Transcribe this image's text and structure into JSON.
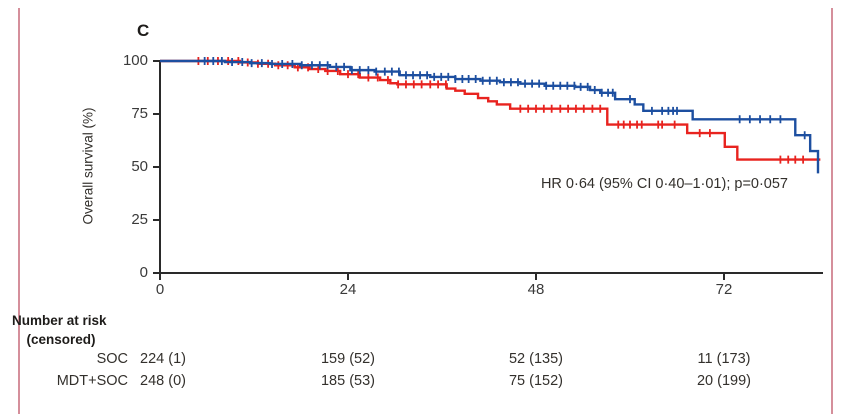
{
  "panel_label": "C",
  "annotation": "HR 0·64 (95% CI 0·40–1·01); p=0·057",
  "axes": {
    "ylabel": "Overall survival (%)",
    "xlabel": ""
  },
  "colors": {
    "soc_red": "#e8231f",
    "mdt_blue": "#1d4fa0",
    "axis": "#2a2a2a",
    "figure_border_pink": "#d58f9b"
  },
  "risk_table": {
    "header_line1": "Number at risk",
    "header_line2": "(censored)",
    "rows": [
      {
        "label": "SOC",
        "values": [
          "224 (1)",
          "159 (52)",
          "52 (135)",
          "11 (173)"
        ]
      },
      {
        "label": "MDT+SOC",
        "values": [
          "248 (0)",
          "185 (53)",
          "75 (152)",
          "20 (199)"
        ]
      }
    ]
  },
  "chart_data": {
    "type": "line",
    "subtype": "kaplan-meier-step",
    "title": "C",
    "ylabel": "Overall survival (%)",
    "xlabel": "",
    "xticks": [
      0,
      24,
      48,
      72
    ],
    "yticks": [
      0,
      25,
      50,
      75,
      100
    ],
    "xlim": [
      0,
      84.6
    ],
    "ylim": [
      0,
      100
    ],
    "grid": false,
    "legend_position": "none",
    "annotation": "HR 0·64 (95% CI 0·40–1·01); p=0·057",
    "series": [
      {
        "name": "SOC",
        "color": "#e8231f",
        "steps": [
          [
            0,
            100
          ],
          [
            10.2,
            99.3
          ],
          [
            12.5,
            98.7
          ],
          [
            14.7,
            98
          ],
          [
            17.2,
            97
          ],
          [
            19.1,
            96.2
          ],
          [
            21.1,
            95.3
          ],
          [
            23,
            93.8
          ],
          [
            25.5,
            92.2
          ],
          [
            28.1,
            91
          ],
          [
            29.4,
            89.5
          ],
          [
            30.3,
            89
          ],
          [
            36.6,
            87
          ],
          [
            37.7,
            86
          ],
          [
            38.9,
            84.5
          ],
          [
            40.6,
            82.5
          ],
          [
            41.9,
            81
          ],
          [
            43,
            79.5
          ],
          [
            44.7,
            77.5
          ],
          [
            57.1,
            70
          ],
          [
            67.3,
            66
          ],
          [
            72.1,
            59.5
          ],
          [
            73.7,
            53.5
          ],
          [
            84.3,
            53.5
          ]
        ],
        "censors": [
          4.9,
          6.1,
          7.4,
          8.7,
          10.0,
          11.2,
          12.5,
          13.8,
          15.1,
          16.3,
          17.6,
          18.9,
          20.2,
          21.4,
          22.7,
          24.0,
          25.3,
          26.6,
          27.8,
          29.1,
          30.4,
          31.4,
          32.4,
          33.4,
          34.5,
          35.5,
          36.5,
          46.0,
          47.0,
          48.0,
          49.0,
          50.0,
          51.1,
          52.1,
          53.1,
          54.1,
          55.2,
          56.2,
          58.5,
          59.2,
          60.0,
          60.9,
          61.5,
          63.6,
          64.1,
          65.7,
          68.9,
          70.2,
          79.2,
          80.2,
          81.1,
          82.1
        ]
      },
      {
        "name": "MDT+SOC",
        "color": "#1d4fa0",
        "steps": [
          [
            0,
            100
          ],
          [
            8.3,
            99.5
          ],
          [
            11.5,
            99
          ],
          [
            14,
            98.6
          ],
          [
            17.9,
            98
          ],
          [
            21.7,
            97.2
          ],
          [
            24.3,
            95.7
          ],
          [
            27.4,
            95
          ],
          [
            30.6,
            93.3
          ],
          [
            34.5,
            92.5
          ],
          [
            37.7,
            91.5
          ],
          [
            40.9,
            90.7
          ],
          [
            43.4,
            90
          ],
          [
            46,
            89.3
          ],
          [
            49.1,
            88.3
          ],
          [
            53,
            87.8
          ],
          [
            54.9,
            86.3
          ],
          [
            56.2,
            85
          ],
          [
            58.1,
            82
          ],
          [
            60.6,
            79.5
          ],
          [
            61.7,
            76.5
          ],
          [
            68,
            72.5
          ],
          [
            81.1,
            65
          ],
          [
            83,
            57.5
          ],
          [
            84,
            47
          ]
        ],
        "censors": [
          5.7,
          6.8,
          7.9,
          9.2,
          10.5,
          11.7,
          13.0,
          14.3,
          15.6,
          16.9,
          18.1,
          19.4,
          20.4,
          21.4,
          22.5,
          23.5,
          24.5,
          25.5,
          26.6,
          27.6,
          28.7,
          29.6,
          30.5,
          31.4,
          32.3,
          33.2,
          34.1,
          35.0,
          35.9,
          36.8,
          37.7,
          38.6,
          39.4,
          40.3,
          41.2,
          42.1,
          43.0,
          43.9,
          44.8,
          45.7,
          46.6,
          47.5,
          48.4,
          49.3,
          50.2,
          51.1,
          52.0,
          52.9,
          53.7,
          54.6,
          55.5,
          56.4,
          57.2,
          57.8,
          60.0,
          62.8,
          64.1,
          64.9,
          65.5,
          66.0,
          74.0,
          75.3,
          76.6,
          77.9,
          79.2,
          82.3
        ]
      }
    ],
    "number_at_risk_times": [
      0,
      24,
      48,
      72
    ]
  }
}
